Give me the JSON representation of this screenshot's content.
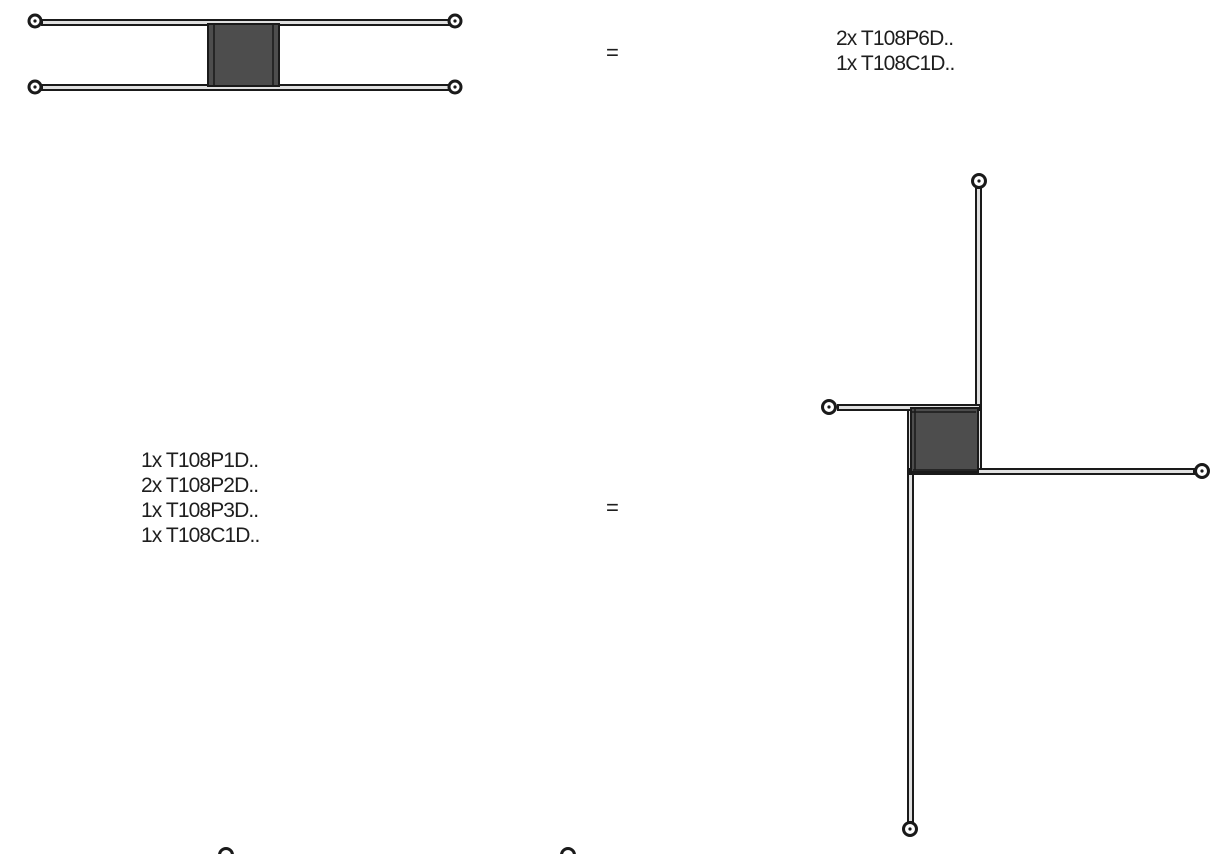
{
  "colors": {
    "frame_fill": "#4d4d4d",
    "outline": "#1a1a1a",
    "pole_fill": "#e0e0e0",
    "text": "#1e1e1e",
    "background": "#ffffff"
  },
  "icons": [
    "cable-end-ring-icon"
  ],
  "assemblies": [
    {
      "equals": "=",
      "parts": [
        "2x T108P6D..",
        "1x T108C1D.."
      ]
    },
    {
      "equals": "=",
      "parts": [
        "1x T108P1D..",
        "2x T108P2D..",
        "1x T108P3D..",
        "1x T108C1D.."
      ]
    }
  ]
}
